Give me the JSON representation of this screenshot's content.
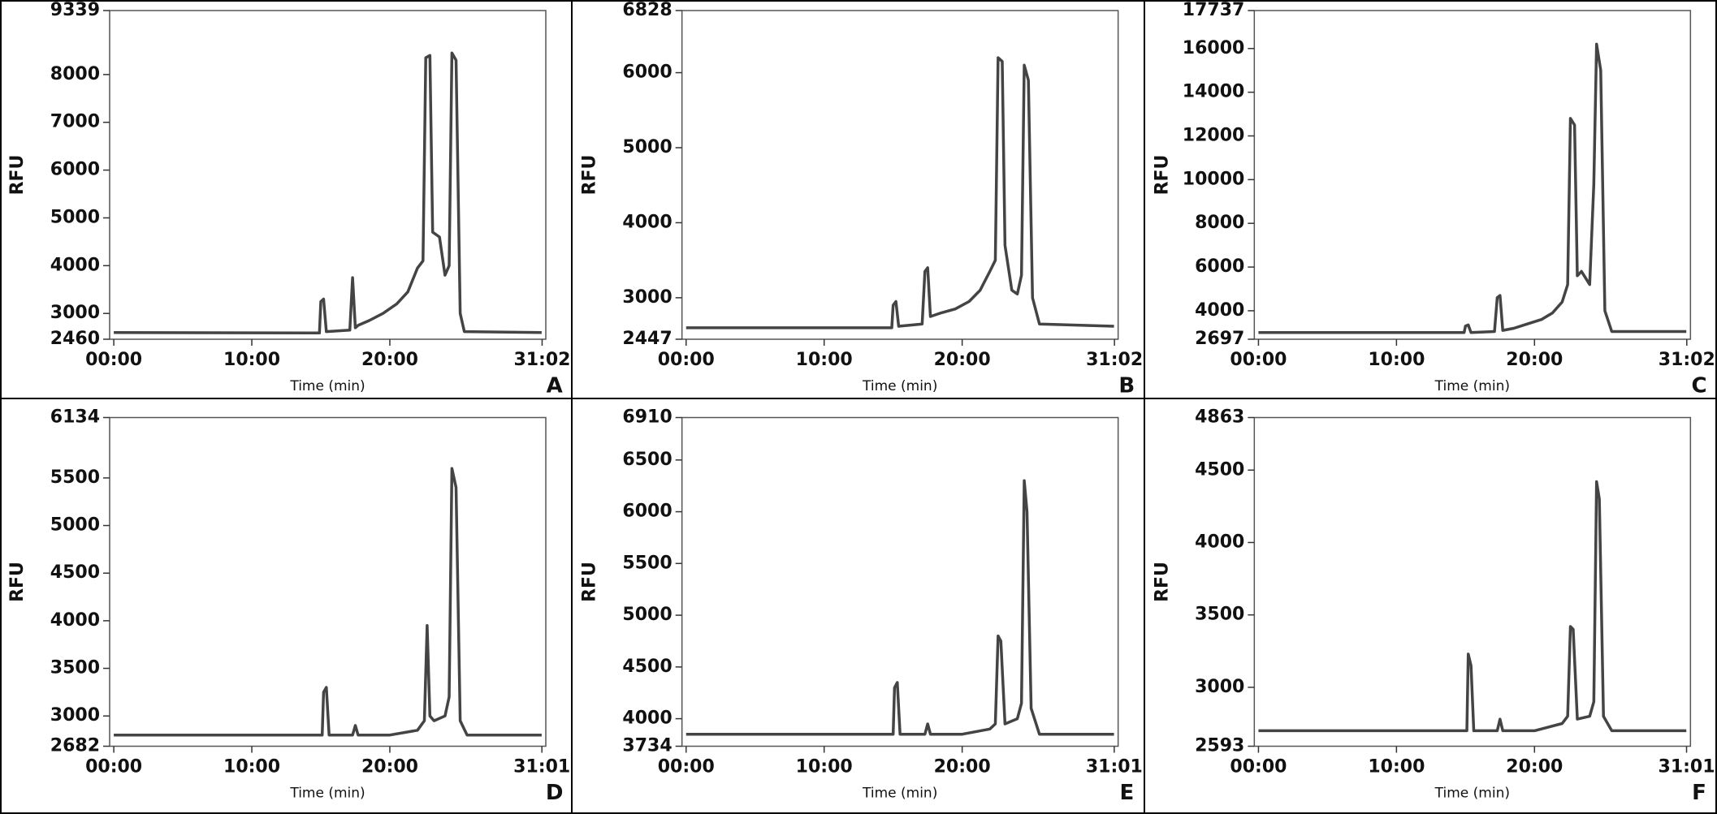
{
  "chart_data": [
    {
      "type": "line",
      "panel_label": "A",
      "xlabel": "Time (min)",
      "ylabel": "RFU",
      "color": "#444444",
      "xlim": [
        -0.3,
        31.3
      ],
      "ylim": [
        2460,
        9339
      ],
      "xticks": [
        {
          "value": 0,
          "label": "00:00"
        },
        {
          "value": 10,
          "label": "10:00"
        },
        {
          "value": 20,
          "label": "20:00"
        },
        {
          "value": 31.033,
          "label": "31:02"
        }
      ],
      "yticks": [
        2460,
        3000,
        4000,
        5000,
        6000,
        7000,
        8000,
        9339
      ],
      "x": [
        0,
        14.9,
        15.0,
        15.2,
        15.4,
        17.1,
        17.3,
        17.5,
        17.7,
        18.5,
        19.5,
        20.5,
        21.3,
        22.0,
        22.4,
        22.6,
        22.9,
        23.1,
        23.6,
        24.0,
        24.3,
        24.5,
        24.8,
        25.1,
        25.4,
        31
      ],
      "values": [
        2600,
        2590,
        3250,
        3300,
        2620,
        2650,
        3750,
        2700,
        2750,
        2850,
        3000,
        3200,
        3450,
        3950,
        4100,
        8350,
        8400,
        4700,
        4600,
        3800,
        4000,
        8450,
        8300,
        3000,
        2620,
        2600
      ]
    },
    {
      "type": "line",
      "panel_label": "B",
      "xlabel": "Time (min)",
      "ylabel": "RFU",
      "color": "#444444",
      "xlim": [
        -0.3,
        31.3
      ],
      "ylim": [
        2447,
        6828
      ],
      "xticks": [
        {
          "value": 0,
          "label": "00:00"
        },
        {
          "value": 10,
          "label": "10:00"
        },
        {
          "value": 20,
          "label": "20:00"
        },
        {
          "value": 31.033,
          "label": "31:02"
        }
      ],
      "yticks": [
        2447,
        3000,
        4000,
        5000,
        6000,
        6828
      ],
      "x": [
        0,
        14.9,
        15.0,
        15.2,
        15.4,
        17.1,
        17.3,
        17.5,
        17.7,
        18.5,
        19.5,
        20.5,
        21.3,
        22.0,
        22.4,
        22.6,
        22.9,
        23.1,
        23.6,
        24.0,
        24.3,
        24.5,
        24.8,
        25.1,
        25.6,
        31
      ],
      "values": [
        2600,
        2600,
        2900,
        2950,
        2620,
        2650,
        3350,
        3400,
        2750,
        2800,
        2850,
        2950,
        3100,
        3350,
        3500,
        6200,
        6150,
        3700,
        3100,
        3050,
        3300,
        6100,
        5900,
        3000,
        2650,
        2620
      ]
    },
    {
      "type": "line",
      "panel_label": "C",
      "xlabel": "Time (min)",
      "ylabel": "RFU",
      "color": "#444444",
      "xlim": [
        -0.3,
        31.3
      ],
      "ylim": [
        2697,
        17737
      ],
      "xticks": [
        {
          "value": 0,
          "label": "00:00"
        },
        {
          "value": 10,
          "label": "10:00"
        },
        {
          "value": 20,
          "label": "20:00"
        },
        {
          "value": 31.033,
          "label": "31:02"
        }
      ],
      "yticks": [
        2697,
        4000,
        6000,
        8000,
        10000,
        12000,
        14000,
        16000,
        17737
      ],
      "x": [
        0,
        14.9,
        15.0,
        15.2,
        15.4,
        17.1,
        17.3,
        17.5,
        17.7,
        18.5,
        19.5,
        20.5,
        21.3,
        22.0,
        22.4,
        22.6,
        22.9,
        23.1,
        23.4,
        24.0,
        24.3,
        24.5,
        24.8,
        25.1,
        25.6,
        31
      ],
      "values": [
        3000,
        3000,
        3300,
        3350,
        3000,
        3050,
        4600,
        4700,
        3100,
        3200,
        3400,
        3600,
        3900,
        4400,
        5200,
        12800,
        12500,
        5600,
        5800,
        5200,
        9800,
        16200,
        15000,
        4000,
        3050,
        3050
      ]
    },
    {
      "type": "line",
      "panel_label": "D",
      "xlabel": "Time (min)",
      "ylabel": "RFU",
      "color": "#444444",
      "xlim": [
        -0.3,
        31.3
      ],
      "ylim": [
        2682,
        6134
      ],
      "xticks": [
        {
          "value": 0,
          "label": "00:00"
        },
        {
          "value": 10,
          "label": "10:00"
        },
        {
          "value": 20,
          "label": "20:00"
        },
        {
          "value": 31.017,
          "label": "31:01"
        }
      ],
      "yticks": [
        2682,
        3000,
        3500,
        4000,
        4500,
        5000,
        5500,
        6134
      ],
      "x": [
        0,
        15.1,
        15.2,
        15.4,
        15.6,
        17.3,
        17.5,
        17.7,
        20.0,
        22.0,
        22.5,
        22.7,
        22.9,
        23.2,
        24.0,
        24.3,
        24.5,
        24.8,
        25.1,
        25.6,
        31
      ],
      "values": [
        2800,
        2800,
        3250,
        3300,
        2800,
        2800,
        2900,
        2800,
        2800,
        2850,
        2950,
        3950,
        3000,
        2950,
        3000,
        3200,
        5600,
        5400,
        2950,
        2800,
        2800
      ]
    },
    {
      "type": "line",
      "panel_label": "E",
      "xlabel": "Time (min)",
      "ylabel": "RFU",
      "color": "#444444",
      "xlim": [
        -0.3,
        31.3
      ],
      "ylim": [
        3734,
        6910
      ],
      "xticks": [
        {
          "value": 0,
          "label": "00:00"
        },
        {
          "value": 10,
          "label": "10:00"
        },
        {
          "value": 20,
          "label": "20:00"
        },
        {
          "value": 31.017,
          "label": "31:01"
        }
      ],
      "yticks": [
        3734,
        4000,
        4500,
        5000,
        5500,
        6000,
        6500,
        6910
      ],
      "x": [
        0,
        15.0,
        15.1,
        15.3,
        15.5,
        17.3,
        17.5,
        17.7,
        20.0,
        22.0,
        22.4,
        22.6,
        22.8,
        23.1,
        24.0,
        24.3,
        24.5,
        24.7,
        25.0,
        25.6,
        31
      ],
      "values": [
        3850,
        3850,
        4300,
        4350,
        3850,
        3850,
        3950,
        3850,
        3850,
        3900,
        3950,
        4800,
        4750,
        3950,
        4000,
        4150,
        6300,
        6000,
        4100,
        3850,
        3850
      ]
    },
    {
      "type": "line",
      "panel_label": "F",
      "xlabel": "Time (min)",
      "ylabel": "RFU",
      "color": "#444444",
      "xlim": [
        -0.3,
        31.3
      ],
      "ylim": [
        2593,
        4863
      ],
      "xticks": [
        {
          "value": 0,
          "label": "00:00"
        },
        {
          "value": 10,
          "label": "10:00"
        },
        {
          "value": 20,
          "label": "20:00"
        },
        {
          "value": 31.017,
          "label": "31:01"
        }
      ],
      "yticks": [
        2593,
        3000,
        3500,
        4000,
        4500,
        4863
      ],
      "x": [
        0,
        15.1,
        15.2,
        15.4,
        15.6,
        17.3,
        17.5,
        17.7,
        20.0,
        22.0,
        22.4,
        22.6,
        22.8,
        23.1,
        24.0,
        24.3,
        24.5,
        24.7,
        25.0,
        25.6,
        31
      ],
      "values": [
        2700,
        2700,
        3230,
        3150,
        2700,
        2700,
        2780,
        2700,
        2700,
        2750,
        2800,
        3420,
        3400,
        2780,
        2800,
        2900,
        4420,
        4300,
        2800,
        2700,
        2700
      ]
    }
  ]
}
